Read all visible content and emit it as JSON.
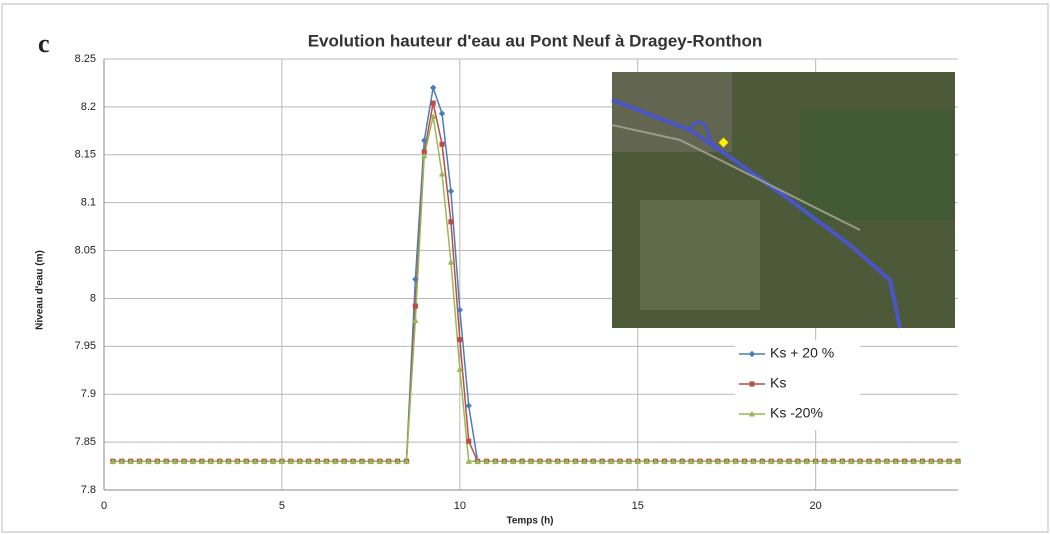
{
  "chart_data": {
    "type": "line",
    "panel_label": "c",
    "title": "Evolution hauteur d'eau au Pont Neuf à Dragey-Ronthon",
    "x_label": "Temps (h)",
    "y_label": "Niveau d'eau (m)",
    "xlim": [
      0,
      24
    ],
    "xticks": [
      0,
      5,
      10,
      15,
      20
    ],
    "ylim": [
      7.8,
      8.25
    ],
    "yticks": [
      7.8,
      7.85,
      7.9,
      7.95,
      8,
      8.05,
      8.1,
      8.15,
      8.2,
      8.25
    ],
    "grid": true,
    "legend_position": "right",
    "x": [
      0.25,
      0.5,
      0.75,
      1,
      1.25,
      1.5,
      1.75,
      2,
      2.25,
      2.5,
      2.75,
      3,
      3.25,
      3.5,
      3.75,
      4,
      4.25,
      4.5,
      4.75,
      5,
      5.25,
      5.5,
      5.75,
      6,
      6.25,
      6.5,
      6.75,
      7,
      7.25,
      7.5,
      7.75,
      8,
      8.25,
      8.5,
      8.75,
      9,
      9.25,
      9.5,
      9.75,
      10,
      10.25,
      10.5,
      10.75,
      11,
      11.25,
      11.5,
      11.75,
      12,
      12.25,
      12.5,
      12.75,
      13,
      13.25,
      13.5,
      13.75,
      14,
      14.25,
      14.5,
      14.75,
      15,
      15.25,
      15.5,
      15.75,
      16,
      16.25,
      16.5,
      16.75,
      17,
      17.25,
      17.5,
      17.75,
      18,
      18.25,
      18.5,
      18.75,
      19,
      19.25,
      19.5,
      19.75,
      20,
      20.25,
      20.5,
      20.75,
      21,
      21.25,
      21.5,
      21.75,
      22,
      22.25,
      22.5,
      22.75,
      23,
      23.25,
      23.5,
      23.75,
      24
    ],
    "series": [
      {
        "name": "Ks + 20 %",
        "color": "#4a7ebb",
        "marker": "diamond",
        "values": [
          7.83,
          7.83,
          7.83,
          7.83,
          7.83,
          7.83,
          7.83,
          7.83,
          7.83,
          7.83,
          7.83,
          7.83,
          7.83,
          7.83,
          7.83,
          7.83,
          7.83,
          7.83,
          7.83,
          7.83,
          7.83,
          7.83,
          7.83,
          7.83,
          7.83,
          7.83,
          7.83,
          7.83,
          7.83,
          7.83,
          7.83,
          7.83,
          7.83,
          7.83,
          8.02,
          8.165,
          8.22,
          8.193,
          8.112,
          7.988,
          7.888,
          7.83,
          7.83,
          7.83,
          7.83,
          7.83,
          7.83,
          7.83,
          7.83,
          7.83,
          7.83,
          7.83,
          7.83,
          7.83,
          7.83,
          7.83,
          7.83,
          7.83,
          7.83,
          7.83,
          7.83,
          7.83,
          7.83,
          7.83,
          7.83,
          7.83,
          7.83,
          7.83,
          7.83,
          7.83,
          7.83,
          7.83,
          7.83,
          7.83,
          7.83,
          7.83,
          7.83,
          7.83,
          7.83,
          7.83,
          7.83,
          7.83,
          7.83,
          7.83,
          7.83,
          7.83,
          7.83,
          7.83,
          7.83,
          7.83,
          7.83,
          7.83,
          7.83,
          7.83,
          7.83,
          7.83
        ]
      },
      {
        "name": "Ks",
        "color": "#be4b48",
        "marker": "square",
        "values": [
          7.83,
          7.83,
          7.83,
          7.83,
          7.83,
          7.83,
          7.83,
          7.83,
          7.83,
          7.83,
          7.83,
          7.83,
          7.83,
          7.83,
          7.83,
          7.83,
          7.83,
          7.83,
          7.83,
          7.83,
          7.83,
          7.83,
          7.83,
          7.83,
          7.83,
          7.83,
          7.83,
          7.83,
          7.83,
          7.83,
          7.83,
          7.83,
          7.83,
          7.83,
          7.992,
          8.153,
          8.204,
          8.161,
          8.08,
          7.957,
          7.851,
          7.83,
          7.83,
          7.83,
          7.83,
          7.83,
          7.83,
          7.83,
          7.83,
          7.83,
          7.83,
          7.83,
          7.83,
          7.83,
          7.83,
          7.83,
          7.83,
          7.83,
          7.83,
          7.83,
          7.83,
          7.83,
          7.83,
          7.83,
          7.83,
          7.83,
          7.83,
          7.83,
          7.83,
          7.83,
          7.83,
          7.83,
          7.83,
          7.83,
          7.83,
          7.83,
          7.83,
          7.83,
          7.83,
          7.83,
          7.83,
          7.83,
          7.83,
          7.83,
          7.83,
          7.83,
          7.83,
          7.83,
          7.83,
          7.83,
          7.83,
          7.83,
          7.83,
          7.83,
          7.83,
          7.83
        ]
      },
      {
        "name": "Ks -20%",
        "color": "#98b954",
        "marker": "triangle",
        "values": [
          7.83,
          7.83,
          7.83,
          7.83,
          7.83,
          7.83,
          7.83,
          7.83,
          7.83,
          7.83,
          7.83,
          7.83,
          7.83,
          7.83,
          7.83,
          7.83,
          7.83,
          7.83,
          7.83,
          7.83,
          7.83,
          7.83,
          7.83,
          7.83,
          7.83,
          7.83,
          7.83,
          7.83,
          7.83,
          7.83,
          7.83,
          7.83,
          7.83,
          7.83,
          7.977,
          8.149,
          8.19,
          8.13,
          8.038,
          7.926,
          7.83,
          7.83,
          7.83,
          7.83,
          7.83,
          7.83,
          7.83,
          7.83,
          7.83,
          7.83,
          7.83,
          7.83,
          7.83,
          7.83,
          7.83,
          7.83,
          7.83,
          7.83,
          7.83,
          7.83,
          7.83,
          7.83,
          7.83,
          7.83,
          7.83,
          7.83,
          7.83,
          7.83,
          7.83,
          7.83,
          7.83,
          7.83,
          7.83,
          7.83,
          7.83,
          7.83,
          7.83,
          7.83,
          7.83,
          7.83,
          7.83,
          7.83,
          7.83,
          7.83,
          7.83,
          7.83,
          7.83,
          7.83,
          7.83,
          7.83,
          7.83,
          7.83,
          7.83,
          7.83,
          7.83,
          7.83
        ]
      }
    ]
  }
}
